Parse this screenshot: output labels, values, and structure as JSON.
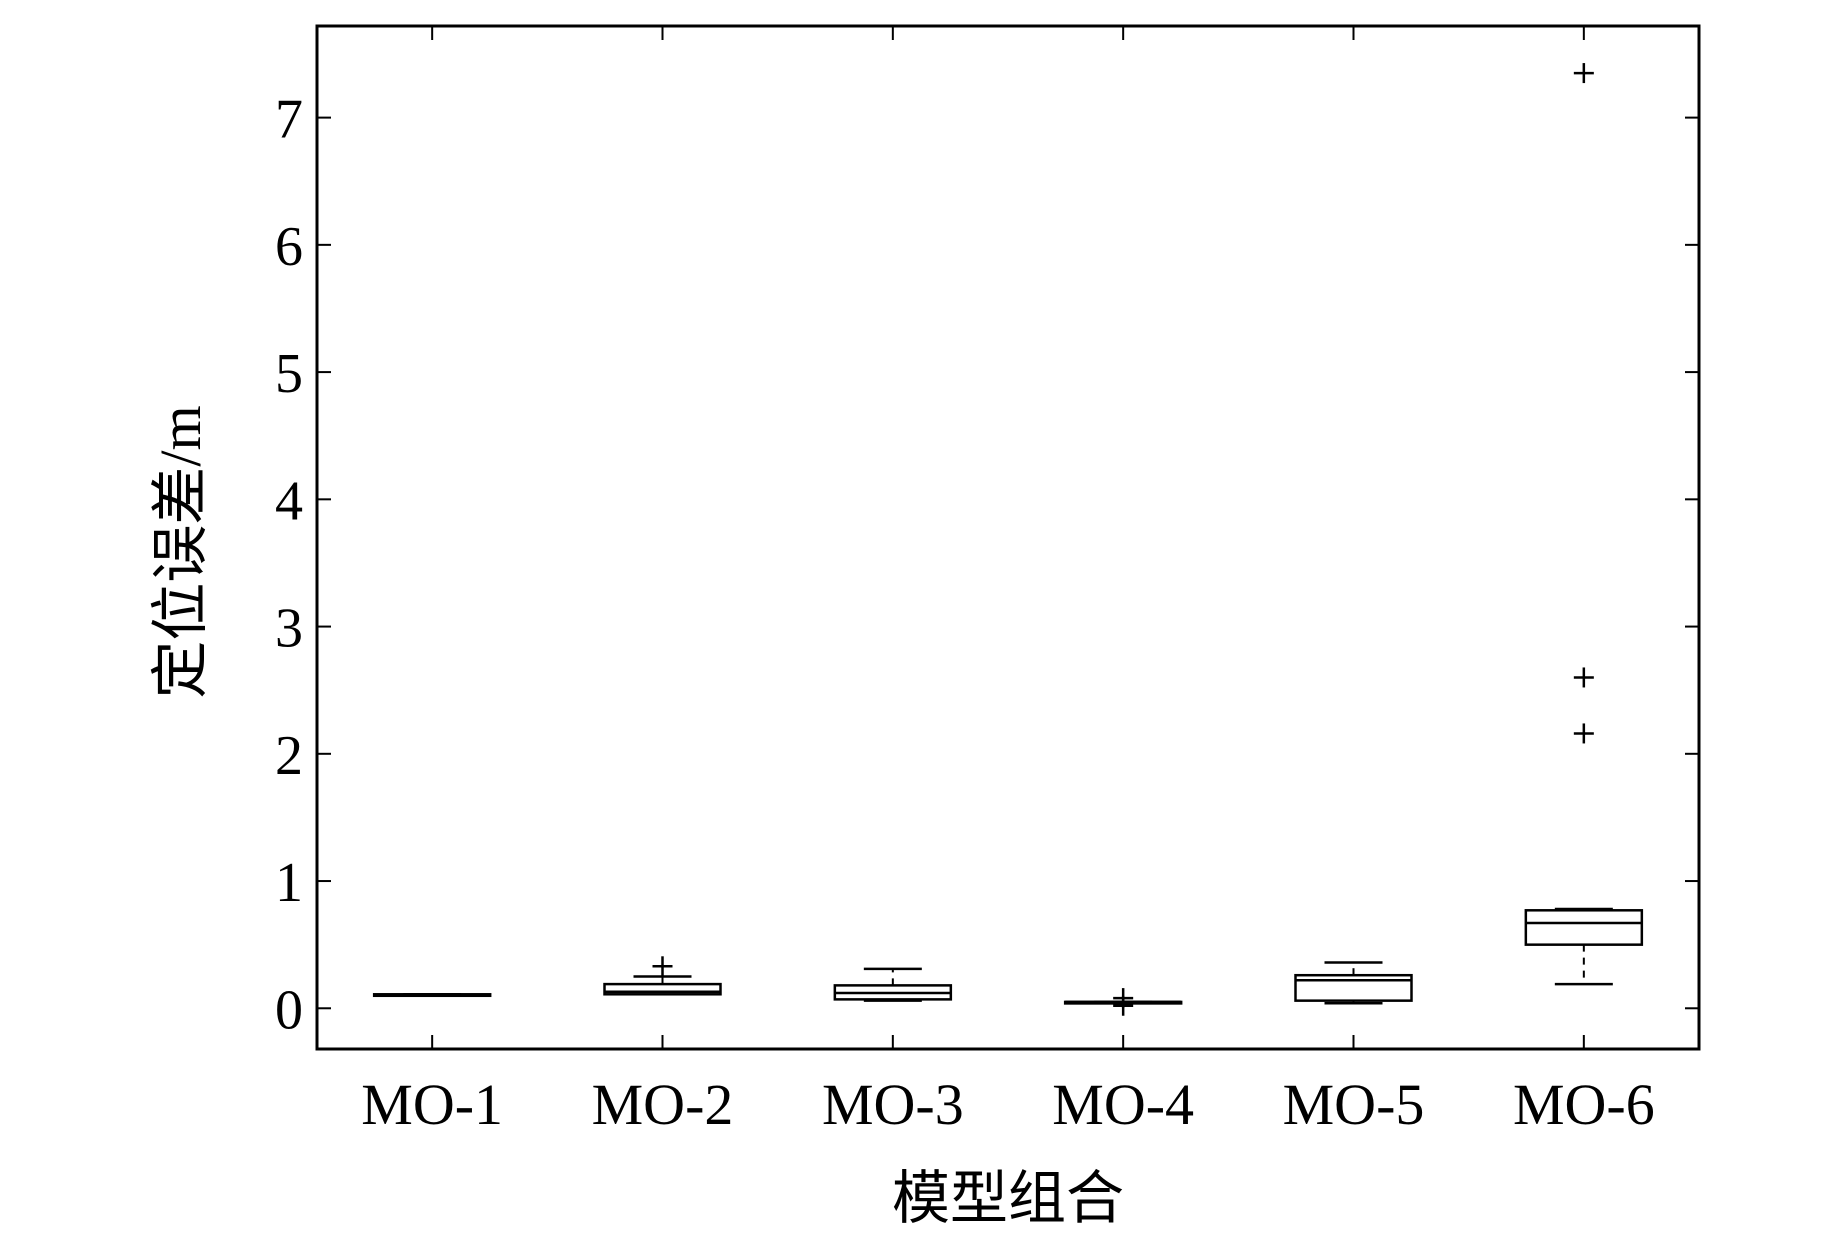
{
  "chart_data": {
    "type": "boxplot",
    "xlabel": "模型组合",
    "ylabel": "定位误差/m",
    "categories": [
      "MO-1",
      "MO-2",
      "MO-3",
      "MO-4",
      "MO-5",
      "MO-6"
    ],
    "ylim": [
      -0.32,
      7.72
    ],
    "yticks": [
      0,
      1,
      2,
      3,
      4,
      5,
      6,
      7
    ],
    "grid": false,
    "legend": "none",
    "boxes": [
      {
        "category": "MO-1",
        "whisker_low": 0.1,
        "q1": 0.1,
        "median": 0.1,
        "q3": 0.11,
        "whisker_high": 0.11,
        "outliers": []
      },
      {
        "category": "MO-2",
        "whisker_low": 0.11,
        "q1": 0.11,
        "median": 0.13,
        "q3": 0.19,
        "whisker_high": 0.25,
        "outliers": [
          0.33
        ]
      },
      {
        "category": "MO-3",
        "whisker_low": 0.06,
        "q1": 0.07,
        "median": 0.12,
        "q3": 0.18,
        "whisker_high": 0.31,
        "outliers": []
      },
      {
        "category": "MO-4",
        "whisker_low": 0.04,
        "q1": 0.05,
        "median": 0.05,
        "q3": 0.05,
        "whisker_high": 0.05,
        "outliers": [
          0.08,
          0.02
        ]
      },
      {
        "category": "MO-5",
        "whisker_low": 0.04,
        "q1": 0.06,
        "median": 0.22,
        "q3": 0.26,
        "whisker_high": 0.36,
        "outliers": []
      },
      {
        "category": "MO-6",
        "whisker_low": 0.19,
        "q1": 0.5,
        "median": 0.67,
        "q3": 0.77,
        "whisker_high": 0.78,
        "outliers": [
          2.16,
          2.6,
          7.35
        ]
      }
    ]
  }
}
